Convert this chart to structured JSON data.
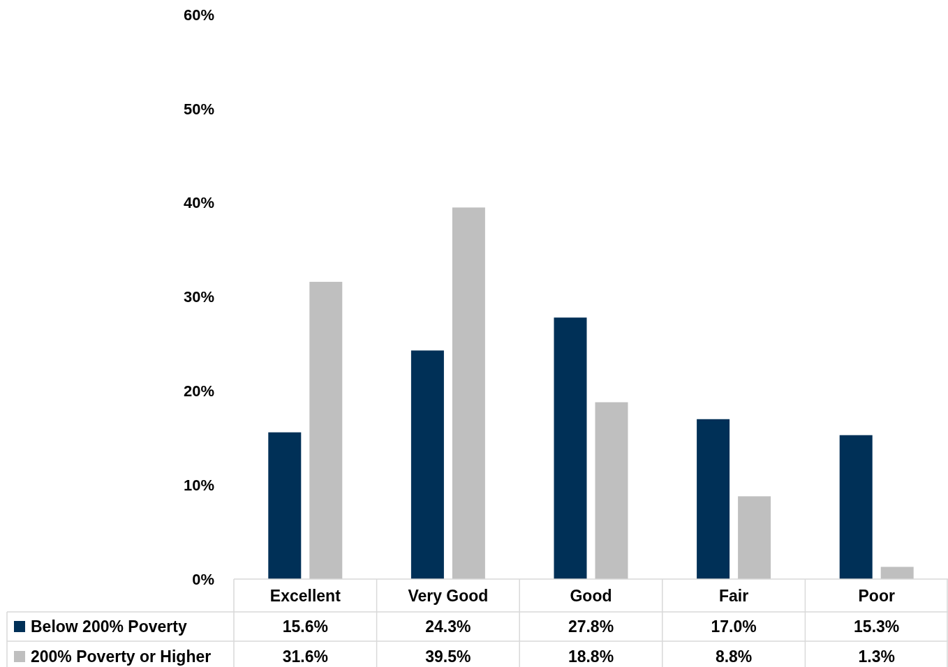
{
  "chart_data": {
    "type": "bar",
    "categories": [
      "Excellent",
      "Very Good",
      "Good",
      "Fair",
      "Poor"
    ],
    "series": [
      {
        "name": "Below 200% Poverty",
        "color": "#003057",
        "values": [
          15.6,
          24.3,
          27.8,
          17.0,
          15.3
        ],
        "value_labels": [
          "15.6%",
          "24.3%",
          "27.8%",
          "17.0%",
          "15.3%"
        ]
      },
      {
        "name": "200% Poverty or Higher",
        "color": "#bfbfbf",
        "values": [
          31.6,
          39.5,
          18.8,
          8.8,
          1.3
        ],
        "value_labels": [
          "31.6%",
          "39.5%",
          "18.8%",
          "8.8%",
          "1.3%"
        ]
      }
    ],
    "ylim": [
      0,
      60
    ],
    "yticks": [
      {
        "value": 0,
        "label": "0%"
      },
      {
        "value": 10,
        "label": "10%"
      },
      {
        "value": 20,
        "label": "20%"
      },
      {
        "value": 30,
        "label": "30%"
      },
      {
        "value": 40,
        "label": "40%"
      },
      {
        "value": 50,
        "label": "50%"
      },
      {
        "value": 60,
        "label": "60%"
      }
    ],
    "grid": false,
    "legend": "bottom"
  }
}
